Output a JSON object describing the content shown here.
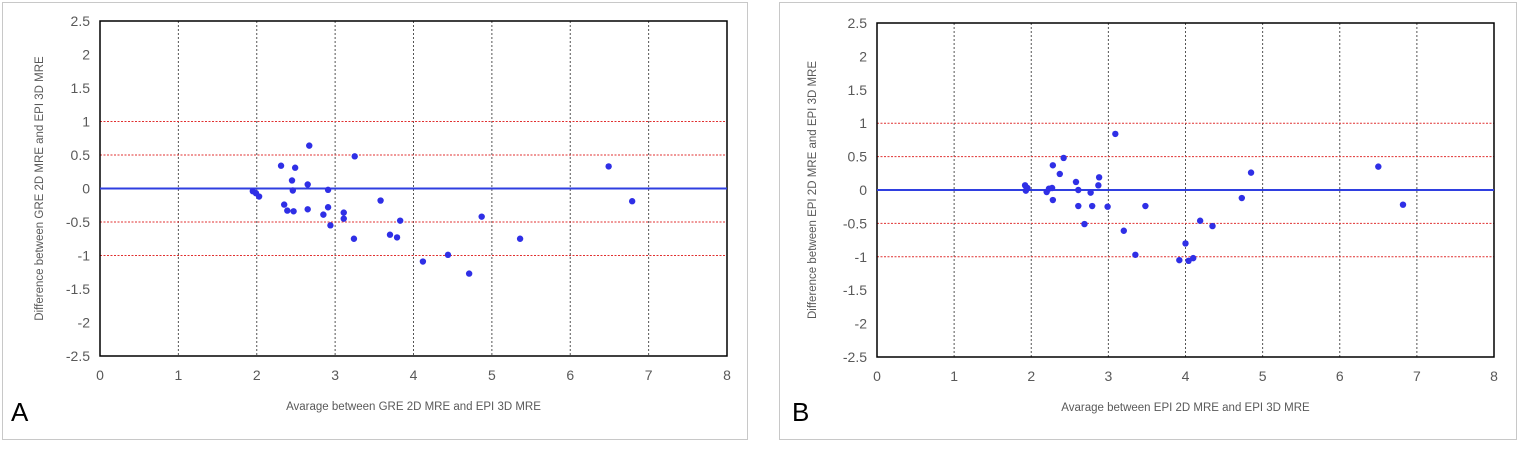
{
  "chart_data": [
    {
      "type": "scatter",
      "panel_label": "A",
      "xlabel": "Avarage between GRE 2D MRE and EPI 3D MRE",
      "ylabel": "Difference between GRE 2D MRE and EPI 3D MRE",
      "xlim": [
        0,
        8
      ],
      "ylim": [
        -2.5,
        2.5
      ],
      "xticks": [
        0,
        1,
        2,
        3,
        4,
        5,
        6,
        7,
        8
      ],
      "yticks": [
        2.5,
        2,
        1.5,
        1,
        0.5,
        0,
        -0.5,
        -1,
        -1.5,
        -2,
        -2.5
      ],
      "grid": "vertical dashed",
      "reference_lines": {
        "mean": 0,
        "dashed": [
          1,
          0.5,
          -0.5,
          -1
        ]
      },
      "colors": {
        "points": "#2f2fe6",
        "mean_line": "#2f3fe0",
        "limit_lines": "#e03030",
        "grid": "#555555"
      },
      "points": [
        [
          1.95,
          -0.04
        ],
        [
          1.99,
          -0.07
        ],
        [
          2.03,
          -0.12
        ],
        [
          2.31,
          0.34
        ],
        [
          2.35,
          -0.24
        ],
        [
          2.39,
          -0.33
        ],
        [
          2.45,
          0.12
        ],
        [
          2.46,
          -0.03
        ],
        [
          2.47,
          -0.34
        ],
        [
          2.49,
          0.31
        ],
        [
          2.67,
          0.64
        ],
        [
          2.65,
          0.06
        ],
        [
          2.65,
          -0.31
        ],
        [
          2.85,
          -0.39
        ],
        [
          2.91,
          -0.02
        ],
        [
          2.91,
          -0.28
        ],
        [
          2.94,
          -0.55
        ],
        [
          3.11,
          -0.36
        ],
        [
          3.11,
          -0.45
        ],
        [
          3.25,
          0.48
        ],
        [
          3.24,
          -0.75
        ],
        [
          3.58,
          -0.18
        ],
        [
          3.7,
          -0.69
        ],
        [
          3.79,
          -0.73
        ],
        [
          3.83,
          -0.48
        ],
        [
          4.12,
          -1.09
        ],
        [
          4.44,
          -0.99
        ],
        [
          4.71,
          -1.27
        ],
        [
          4.87,
          -0.42
        ],
        [
          5.36,
          -0.75
        ],
        [
          6.49,
          0.33
        ],
        [
          6.79,
          -0.19
        ]
      ]
    },
    {
      "type": "scatter",
      "panel_label": "B",
      "xlabel": "Avarage between EPI 2D MRE and EPI 3D MRE",
      "ylabel": "Difference between EPI 2D MRE and EPI 3D MRE",
      "xlim": [
        0,
        8
      ],
      "ylim": [
        -2.5,
        2.5
      ],
      "xticks": [
        0,
        1,
        2,
        3,
        4,
        5,
        6,
        7,
        8
      ],
      "yticks": [
        2.5,
        2,
        1.5,
        1,
        0.5,
        0,
        -0.5,
        -1,
        -1.5,
        -2,
        -2.5
      ],
      "grid": "vertical dashed",
      "reference_lines": {
        "mean": 0,
        "dashed": [
          1,
          0.5,
          -0.5,
          -1
        ]
      },
      "colors": {
        "points": "#2f2fe6",
        "mean_line": "#2f3fe0",
        "limit_lines": "#e03030",
        "grid": "#555555"
      },
      "points": [
        [
          1.92,
          0.07
        ],
        [
          1.93,
          -0.01
        ],
        [
          1.95,
          0.03
        ],
        [
          2.2,
          -0.03
        ],
        [
          2.23,
          0.02
        ],
        [
          2.27,
          0.03
        ],
        [
          2.28,
          0.37
        ],
        [
          2.28,
          -0.15
        ],
        [
          2.37,
          0.24
        ],
        [
          2.42,
          0.48
        ],
        [
          2.58,
          0.12
        ],
        [
          2.61,
          0.0
        ],
        [
          2.61,
          -0.24
        ],
        [
          2.79,
          -0.24
        ],
        [
          2.69,
          -0.51
        ],
        [
          2.77,
          -0.04
        ],
        [
          2.87,
          0.07
        ],
        [
          2.88,
          0.19
        ],
        [
          2.99,
          -0.25
        ],
        [
          3.09,
          0.84
        ],
        [
          3.2,
          -0.61
        ],
        [
          3.35,
          -0.97
        ],
        [
          3.48,
          -0.24
        ],
        [
          3.92,
          -1.05
        ],
        [
          4.0,
          -0.8
        ],
        [
          4.04,
          -1.06
        ],
        [
          4.1,
          -1.02
        ],
        [
          4.19,
          -0.46
        ],
        [
          4.35,
          -0.54
        ],
        [
          4.73,
          -0.12
        ],
        [
          4.85,
          0.26
        ],
        [
          6.5,
          0.35
        ],
        [
          6.82,
          -0.22
        ]
      ]
    }
  ]
}
